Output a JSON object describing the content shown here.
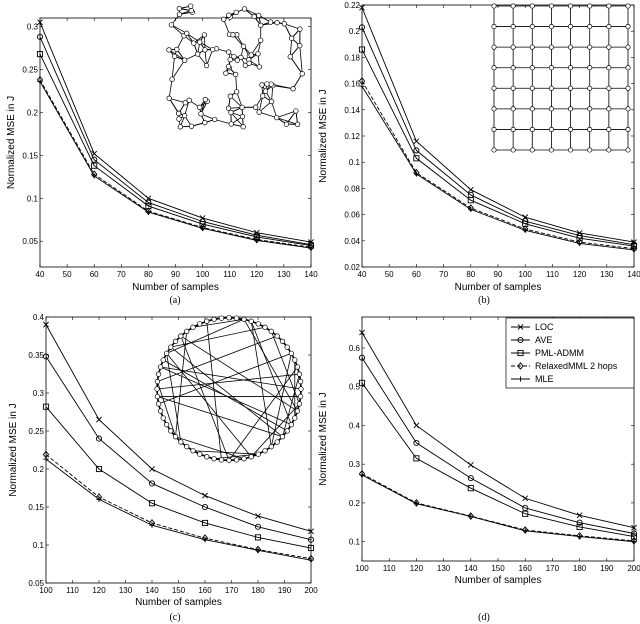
{
  "series_names": [
    "LOC",
    "AVE",
    "PML-ADMM",
    "RelaxedMML 2 hops",
    "MLE"
  ],
  "chart_data": [
    {
      "type": "line",
      "caption": "(a)",
      "xlabel": "Number of samples",
      "ylabel": "Normalized MSE in J",
      "xlim": [
        40,
        140
      ],
      "ylim": [
        0.02,
        0.31
      ],
      "xticks": [
        40,
        50,
        60,
        70,
        80,
        90,
        100,
        110,
        120,
        130,
        140
      ],
      "yticks": [
        0.05,
        0.1,
        0.15,
        0.2,
        0.25,
        0.3
      ],
      "x": [
        40,
        60,
        80,
        100,
        120,
        140
      ],
      "series": [
        {
          "values": [
            0.305,
            0.152,
            0.1,
            0.077,
            0.06,
            0.049
          ]
        },
        {
          "values": [
            0.288,
            0.145,
            0.095,
            0.073,
            0.057,
            0.046
          ]
        },
        {
          "values": [
            0.268,
            0.138,
            0.091,
            0.07,
            0.055,
            0.045
          ]
        },
        {
          "values": [
            0.238,
            0.128,
            0.085,
            0.066,
            0.052,
            0.043
          ]
        },
        {
          "values": [
            0.236,
            0.126,
            0.084,
            0.065,
            0.051,
            0.042
          ]
        }
      ],
      "legend": false
    },
    {
      "type": "line",
      "caption": "(b)",
      "xlabel": "Number of samples",
      "ylabel": "Normalized MSE in J",
      "xlim": [
        40,
        140
      ],
      "ylim": [
        0.02,
        0.22
      ],
      "xticks": [
        40,
        50,
        60,
        70,
        80,
        90,
        100,
        110,
        120,
        130,
        140
      ],
      "yticks": [
        0.02,
        0.04,
        0.06,
        0.08,
        0.1,
        0.12,
        0.14,
        0.16,
        0.18,
        0.2,
        0.22
      ],
      "x": [
        40,
        60,
        80,
        100,
        120,
        140
      ],
      "series": [
        {
          "values": [
            0.218,
            0.116,
            0.079,
            0.058,
            0.046,
            0.039
          ]
        },
        {
          "values": [
            0.203,
            0.109,
            0.075,
            0.055,
            0.044,
            0.037
          ]
        },
        {
          "values": [
            0.186,
            0.103,
            0.071,
            0.053,
            0.042,
            0.036
          ]
        },
        {
          "values": [
            0.162,
            0.092,
            0.065,
            0.049,
            0.039,
            0.034
          ]
        },
        {
          "values": [
            0.158,
            0.091,
            0.064,
            0.048,
            0.038,
            0.033
          ]
        }
      ],
      "legend": false
    },
    {
      "type": "line",
      "caption": "(c)",
      "xlabel": "Number of samples",
      "ylabel": "Normalized MSE in J",
      "xlim": [
        100,
        200
      ],
      "ylim": [
        0.05,
        0.4
      ],
      "xticks": [
        100,
        110,
        120,
        130,
        140,
        150,
        160,
        170,
        180,
        190,
        200
      ],
      "yticks": [
        0.05,
        0.1,
        0.15,
        0.2,
        0.25,
        0.3,
        0.35,
        0.4
      ],
      "x": [
        100,
        120,
        140,
        160,
        180,
        200
      ],
      "series": [
        {
          "values": [
            0.39,
            0.265,
            0.2,
            0.165,
            0.138,
            0.118
          ]
        },
        {
          "values": [
            0.348,
            0.24,
            0.181,
            0.15,
            0.124,
            0.107
          ]
        },
        {
          "values": [
            0.282,
            0.2,
            0.155,
            0.129,
            0.11,
            0.096
          ]
        },
        {
          "values": [
            0.219,
            0.163,
            0.129,
            0.109,
            0.094,
            0.082
          ]
        },
        {
          "values": [
            0.213,
            0.16,
            0.126,
            0.107,
            0.093,
            0.08
          ]
        }
      ],
      "legend": false
    },
    {
      "type": "line",
      "caption": "(d)",
      "xlabel": "Number of samples",
      "ylabel": "Normalized MSE in J",
      "xlim": [
        100,
        200
      ],
      "ylim": [
        0.05,
        0.68
      ],
      "xticks": [
        100,
        110,
        120,
        130,
        140,
        150,
        160,
        170,
        180,
        190,
        200
      ],
      "yticks": [
        0.1,
        0.2,
        0.3,
        0.4,
        0.5,
        0.6
      ],
      "x": [
        100,
        120,
        140,
        160,
        180,
        200
      ],
      "series": [
        {
          "values": [
            0.64,
            0.4,
            0.298,
            0.212,
            0.168,
            0.136
          ]
        },
        {
          "values": [
            0.575,
            0.355,
            0.264,
            0.187,
            0.149,
            0.121
          ]
        },
        {
          "values": [
            0.51,
            0.315,
            0.238,
            0.172,
            0.138,
            0.113
          ]
        },
        {
          "values": [
            0.275,
            0.2,
            0.166,
            0.13,
            0.115,
            0.102
          ]
        },
        {
          "values": [
            0.272,
            0.198,
            0.165,
            0.128,
            0.113,
            0.1
          ]
        }
      ],
      "legend": true,
      "legend_position": "top-right"
    }
  ],
  "insets": [
    "random-geometric-graph",
    "grid-graph",
    "small-world-ring-graph"
  ]
}
